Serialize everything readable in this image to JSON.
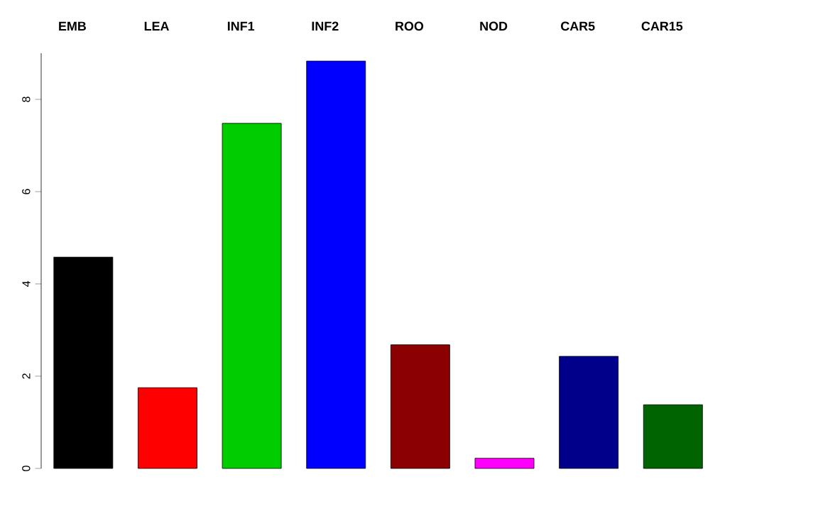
{
  "chart_data": {
    "type": "bar",
    "categories": [
      "EMB",
      "LEA",
      "INF1",
      "INF2",
      "ROO",
      "NOD",
      "CAR5",
      "CAR15"
    ],
    "values": [
      4.58,
      1.75,
      7.48,
      8.83,
      2.68,
      0.22,
      2.43,
      1.38
    ],
    "colors": [
      "#000000",
      "#ff0000",
      "#00cd00",
      "#0000ff",
      "#8b0000",
      "#ff00ff",
      "#00008b",
      "#006400"
    ],
    "ylim": [
      0,
      9
    ],
    "yticks": [
      0,
      2,
      4,
      6,
      8
    ]
  }
}
